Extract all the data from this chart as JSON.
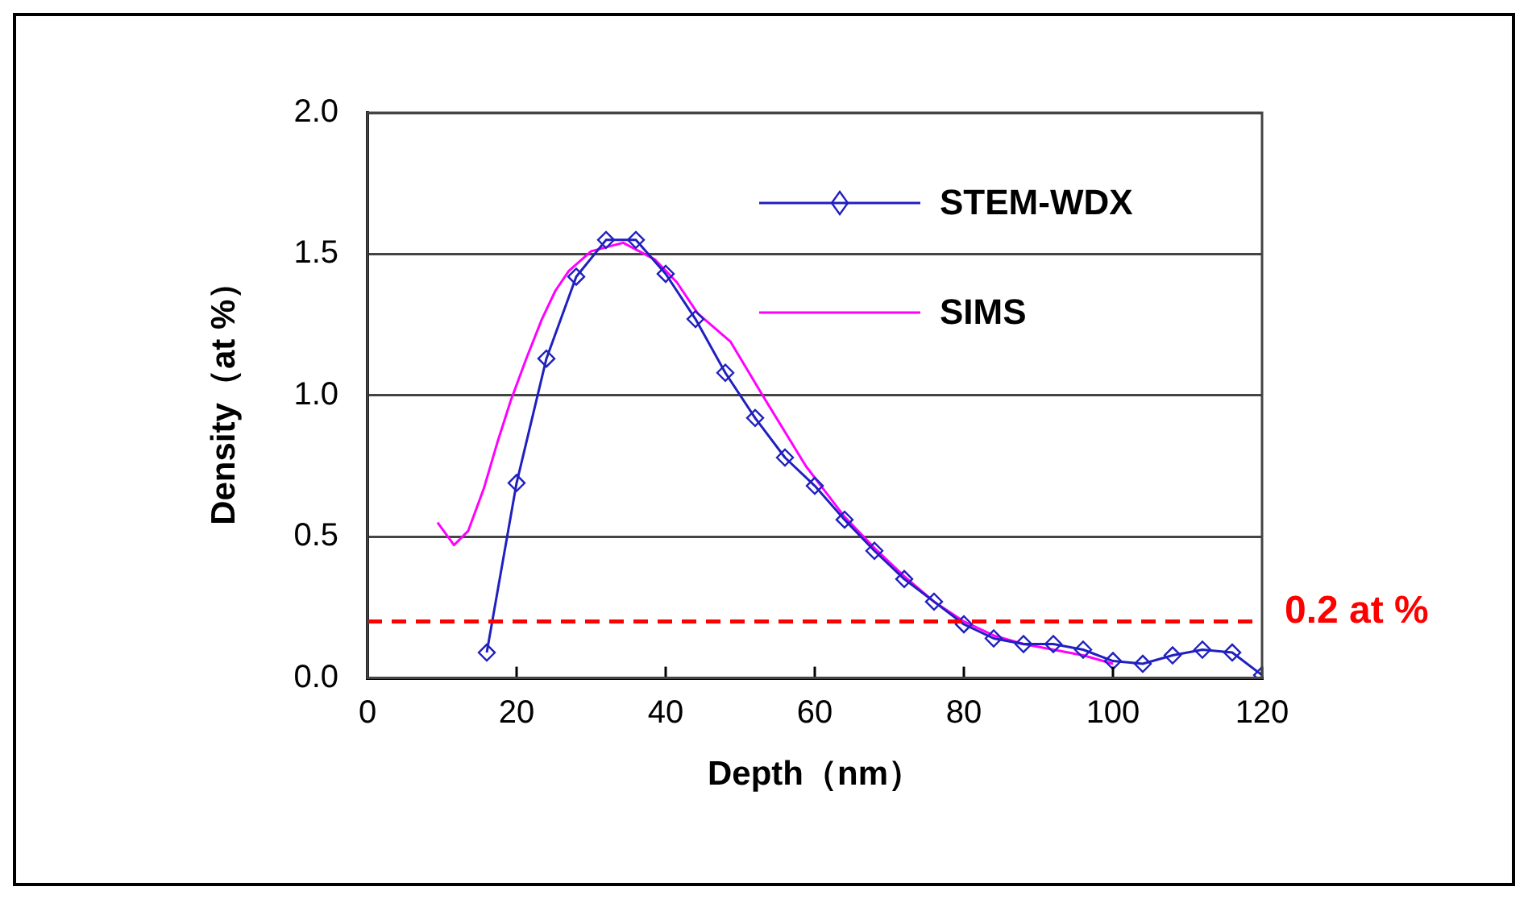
{
  "chart_data": {
    "type": "line",
    "xlabel": "Depth（nm）",
    "ylabel": "Density（at %）",
    "xlim": [
      0,
      120
    ],
    "xticks": [
      0,
      20,
      40,
      60,
      80,
      100,
      120
    ],
    "ylim": [
      0,
      2
    ],
    "yticks": [
      {
        "value": 0,
        "label": "0.0"
      },
      {
        "value": 0.5,
        "label": "0.5"
      },
      {
        "value": 1,
        "label": "1.0"
      },
      {
        "value": 1.5,
        "label": "1.5"
      },
      {
        "value": 2,
        "label": "2.0"
      }
    ],
    "grid": "y",
    "legend": "top right",
    "series": [
      {
        "name": "STEM-WDX",
        "color": "#2020c0",
        "marker": "diamond",
        "x": [
          16,
          20,
          24,
          28,
          32,
          36,
          40,
          44,
          48,
          52,
          56,
          60,
          64,
          68,
          72,
          76,
          80,
          84,
          88,
          92,
          96,
          100,
          104,
          108,
          112,
          116,
          120
        ],
        "values": [
          0.09,
          0.69,
          1.13,
          1.42,
          1.55,
          1.55,
          1.43,
          1.27,
          1.08,
          0.92,
          0.78,
          0.68,
          0.56,
          0.45,
          0.35,
          0.27,
          0.19,
          0.14,
          0.12,
          0.12,
          0.1,
          0.06,
          0.05,
          0.08,
          0.1,
          0.09,
          0.01
        ]
      },
      {
        "name": "SIMS",
        "color": "#ff00ff",
        "marker": "none",
        "x": [
          9.4,
          11.6,
          13.5,
          15.6,
          17.5,
          19.2,
          21.3,
          23.4,
          25.2,
          27,
          30,
          34.3,
          38.6,
          41.5,
          44.3,
          48.7,
          53,
          58.8,
          64,
          68,
          72,
          76,
          80,
          84,
          88,
          92,
          96,
          100
        ],
        "values": [
          0.55,
          0.47,
          0.52,
          0.67,
          0.84,
          0.98,
          1.13,
          1.27,
          1.37,
          1.44,
          1.51,
          1.54,
          1.48,
          1.4,
          1.29,
          1.19,
          1,
          0.75,
          0.57,
          0.46,
          0.36,
          0.27,
          0.2,
          0.15,
          0.12,
          0.1,
          0.08,
          0.05
        ]
      }
    ],
    "ref_lines": [
      {
        "axis": "y",
        "value": 0.2,
        "label": "0.2 at %",
        "color": "#ff0000",
        "line_style": "dashed"
      }
    ]
  }
}
